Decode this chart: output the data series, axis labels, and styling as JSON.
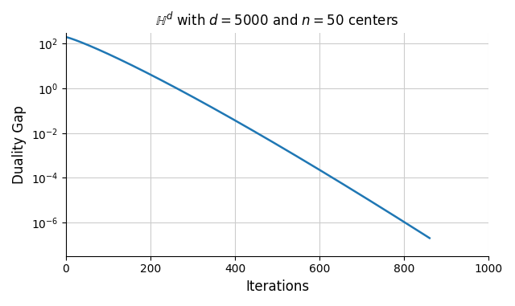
{
  "title": "$\\mathbb{H}^d$ with $d = 5000$ and $n = 50$ centers",
  "xlabel": "Iterations",
  "ylabel": "Duality Gap",
  "xlim": [
    0,
    1000
  ],
  "ylim_log": [
    -7.5,
    2.5
  ],
  "line_color": "#1f77b4",
  "line_width": 1.8,
  "grid_color": "#cccccc",
  "figsize": [
    6.4,
    3.81
  ],
  "dpi": 100,
  "start_value": 200.0,
  "end_iter": 860,
  "end_value": 2e-07,
  "curve_shape": "exponential_with_acceleration"
}
